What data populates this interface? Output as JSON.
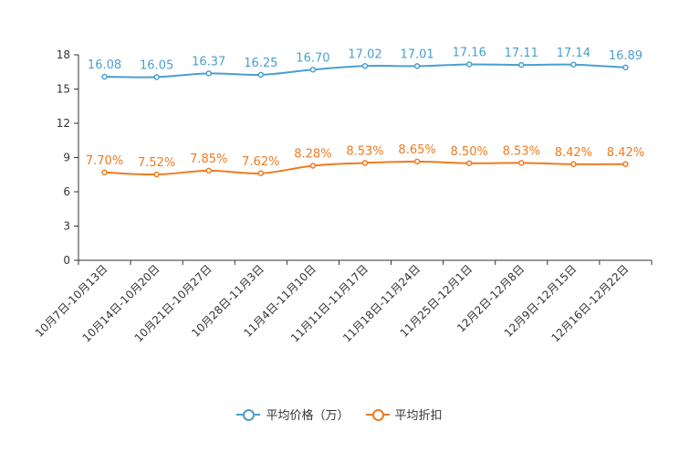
{
  "chart_data": {
    "type": "line",
    "title": "",
    "xlabel": "",
    "ylabel": "",
    "ylim": [
      0,
      18
    ],
    "yticks": [
      0,
      3,
      6,
      9,
      12,
      15,
      18
    ],
    "grid": false,
    "legend_position": "bottom-center",
    "categories": [
      "10月7日-10月13日",
      "10月14日-10月20日",
      "10月21日-10月27日",
      "10月28日-11月3日",
      "11月4日-11月10日",
      "11月11日-11月17日",
      "11月18日-11月24日",
      "11月25日-12月1日",
      "12月2日-12月8日",
      "12月9日-12月15日",
      "12月16日-12月22日"
    ],
    "series": [
      {
        "name": "平均价格（万）",
        "color": "#4a9fd0",
        "values": [
          16.08,
          16.05,
          16.37,
          16.25,
          16.7,
          17.02,
          17.01,
          17.16,
          17.11,
          17.14,
          16.89
        ],
        "labels": [
          "16.08",
          "16.05",
          "16.37",
          "16.25",
          "16.70",
          "17.02",
          "17.01",
          "17.16",
          "17.11",
          "17.14",
          "16.89"
        ]
      },
      {
        "name": "平均折扣",
        "color": "#f07a1e",
        "values": [
          7.7,
          7.52,
          7.85,
          7.62,
          8.28,
          8.53,
          8.65,
          8.5,
          8.53,
          8.42,
          8.42
        ],
        "labels": [
          "7.70%",
          "7.52%",
          "7.85%",
          "7.62%",
          "8.28%",
          "8.53%",
          "8.65%",
          "8.50%",
          "8.53%",
          "8.42%",
          "8.42%"
        ]
      }
    ]
  }
}
